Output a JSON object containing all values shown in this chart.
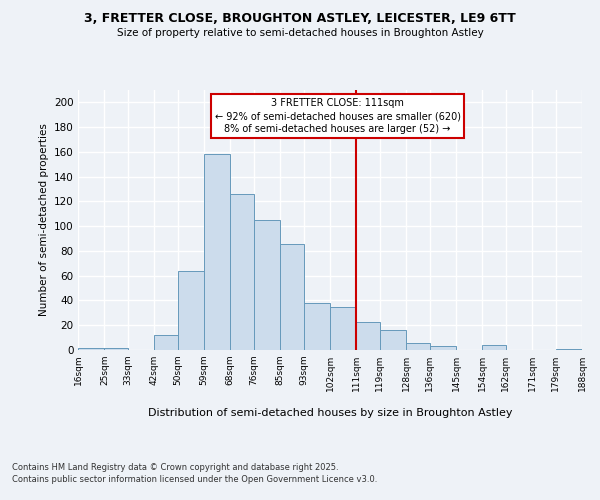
{
  "title": "3, FRETTER CLOSE, BROUGHTON ASTLEY, LEICESTER, LE9 6TT",
  "subtitle": "Size of property relative to semi-detached houses in Broughton Astley",
  "xlabel": "Distribution of semi-detached houses by size in Broughton Astley",
  "ylabel": "Number of semi-detached properties",
  "bin_labels": [
    "16sqm",
    "25sqm",
    "33sqm",
    "42sqm",
    "50sqm",
    "59sqm",
    "68sqm",
    "76sqm",
    "85sqm",
    "93sqm",
    "102sqm",
    "111sqm",
    "119sqm",
    "128sqm",
    "136sqm",
    "145sqm",
    "154sqm",
    "162sqm",
    "171sqm",
    "179sqm",
    "188sqm"
  ],
  "bin_edges": [
    16,
    25,
    33,
    42,
    50,
    59,
    68,
    76,
    85,
    93,
    102,
    111,
    119,
    128,
    136,
    145,
    154,
    162,
    171,
    179,
    188
  ],
  "bar_heights": [
    2,
    2,
    0,
    12,
    64,
    158,
    126,
    105,
    86,
    38,
    35,
    23,
    16,
    6,
    3,
    0,
    4,
    0,
    0,
    1
  ],
  "bar_color": "#ccdcec",
  "bar_edgecolor": "#6699bb",
  "vline_x": 111,
  "vline_color": "#cc0000",
  "annotation_title": "3 FRETTER CLOSE: 111sqm",
  "annotation_line1": "← 92% of semi-detached houses are smaller (620)",
  "annotation_line2": "8% of semi-detached houses are larger (52) →",
  "annotation_box_edgecolor": "#cc0000",
  "ylim": [
    0,
    210
  ],
  "yticks": [
    0,
    20,
    40,
    60,
    80,
    100,
    120,
    140,
    160,
    180,
    200
  ],
  "footnote1": "Contains HM Land Registry data © Crown copyright and database right 2025.",
  "footnote2": "Contains public sector information licensed under the Open Government Licence v3.0.",
  "background_color": "#eef2f7",
  "grid_color": "#ffffff"
}
